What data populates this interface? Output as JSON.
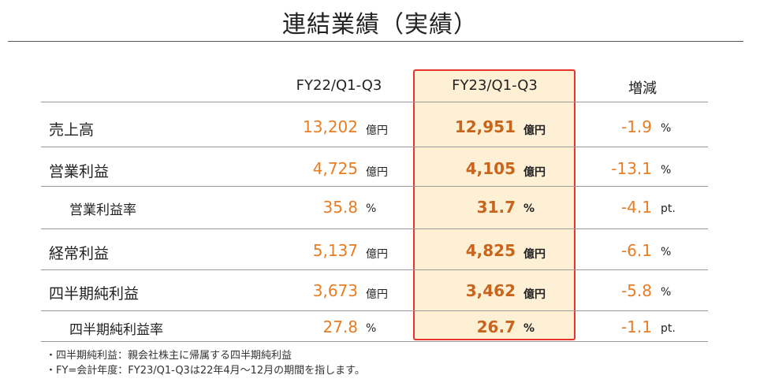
{
  "title": "連結業績（実績）",
  "columns": {
    "prev": "FY22/Q1-Q3",
    "curr": "FY23/Q1-Q3",
    "change": "増減"
  },
  "rows": [
    {
      "label": "売上高",
      "prev": "13,202",
      "prev_unit": "億円",
      "curr": "12,951",
      "curr_unit": "億円",
      "change": "-1.9",
      "change_unit": "%"
    },
    {
      "label": "営業利益",
      "prev": "4,725",
      "prev_unit": "億円",
      "curr": "4,105",
      "curr_unit": "億円",
      "change": "-13.1",
      "change_unit": "%"
    },
    {
      "label": "営業利益率",
      "prev": "35.8",
      "prev_unit": "%",
      "curr": "31.7",
      "curr_unit": "%",
      "change": "-4.1",
      "change_unit": "pt."
    },
    {
      "label": "経常利益",
      "prev": "5,137",
      "prev_unit": "億円",
      "curr": "4,825",
      "curr_unit": "億円",
      "change": "-6.1",
      "change_unit": "%"
    },
    {
      "label": "四半期純利益",
      "prev": "3,673",
      "prev_unit": "億円",
      "curr": "3,462",
      "curr_unit": "億円",
      "change": "-5.8",
      "change_unit": "%"
    },
    {
      "label": "四半期純利益率",
      "prev": "27.8",
      "prev_unit": "%",
      "curr": "26.7",
      "curr_unit": "%",
      "change": "-1.1",
      "change_unit": "pt."
    }
  ],
  "notes": [
    "・四半期純利益：親会社株主に帰属する四半期純利益",
    "・FY=会計年度：FY23/Q1-Q3は22年4月～12月の期間を指します。"
  ],
  "colors": {
    "value_orange": "#e87d24",
    "current_value": "#c8641c",
    "highlight_fill": "#fdf0d5",
    "highlight_border": "#e8342b"
  }
}
